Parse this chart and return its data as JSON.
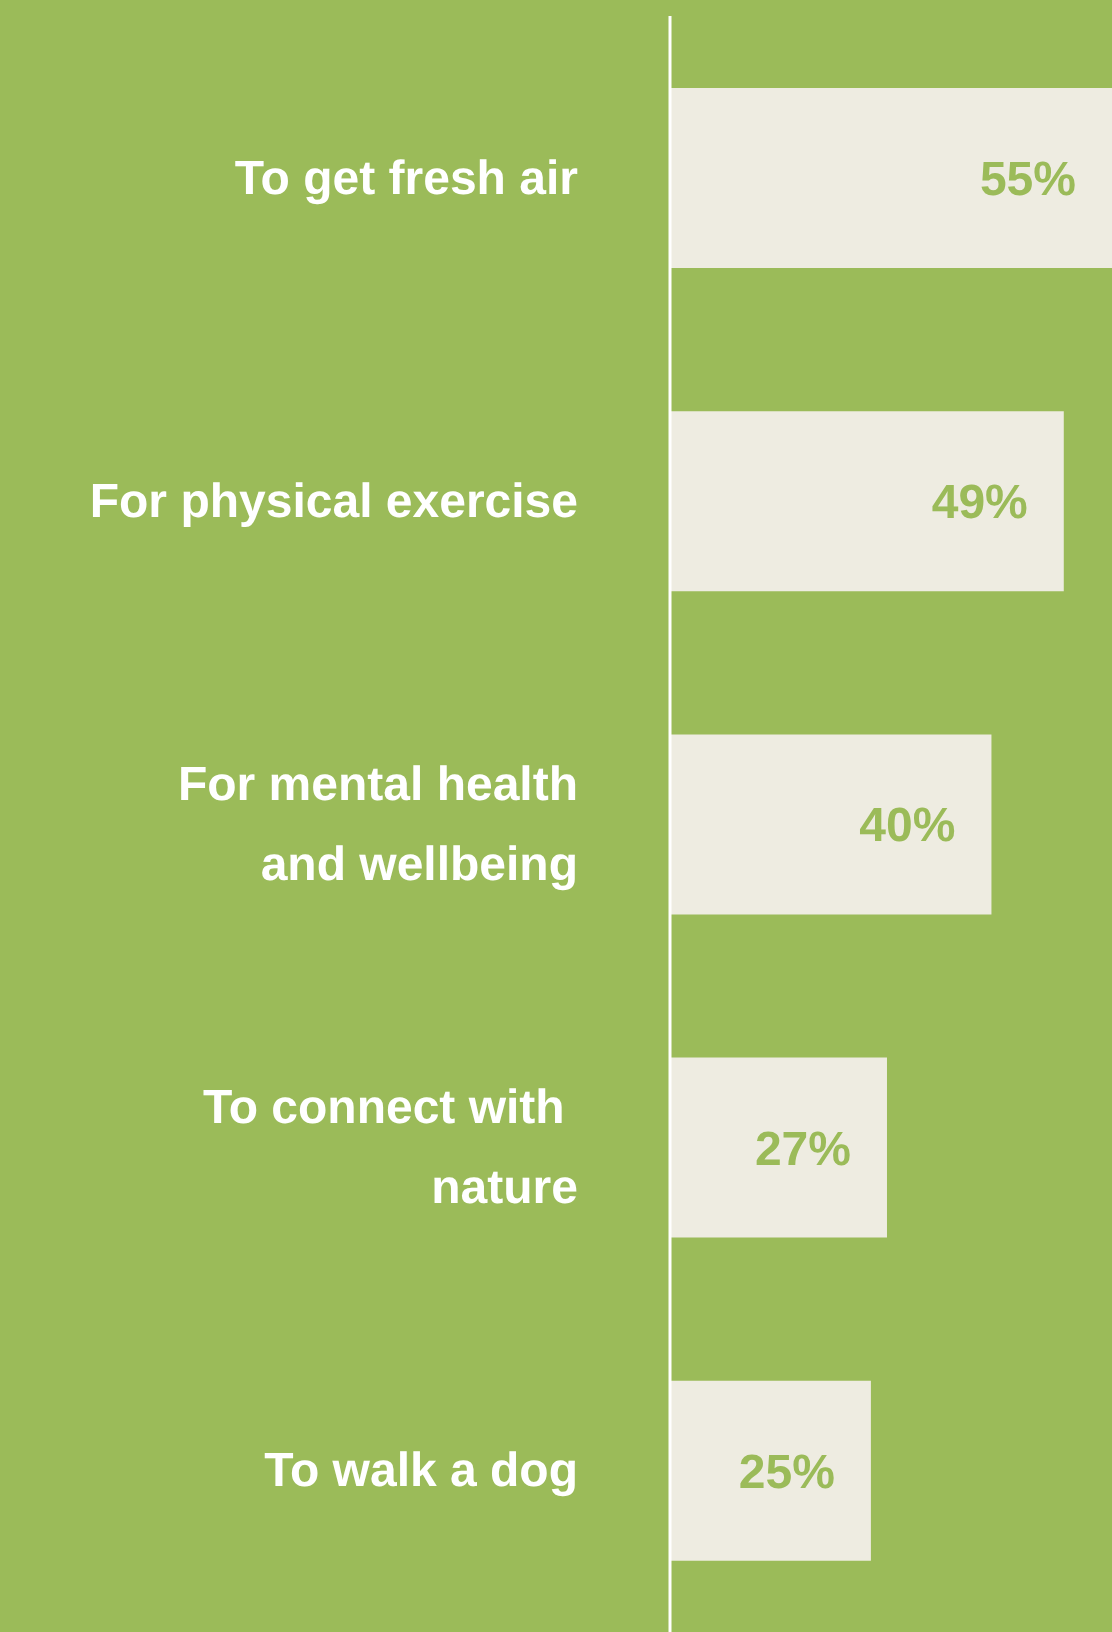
{
  "chart_data": {
    "type": "bar",
    "orientation": "horizontal",
    "categories": [
      "To get fresh air",
      "For physical exercise",
      "For mental health\nand wellbeing",
      "To connect with \nnature",
      "To walk a dog"
    ],
    "values": [
      55,
      49,
      40,
      27,
      25
    ],
    "value_labels": [
      "55%",
      "49%",
      "40%",
      "27%",
      "25%"
    ],
    "color": "#eeece1"
  }
}
